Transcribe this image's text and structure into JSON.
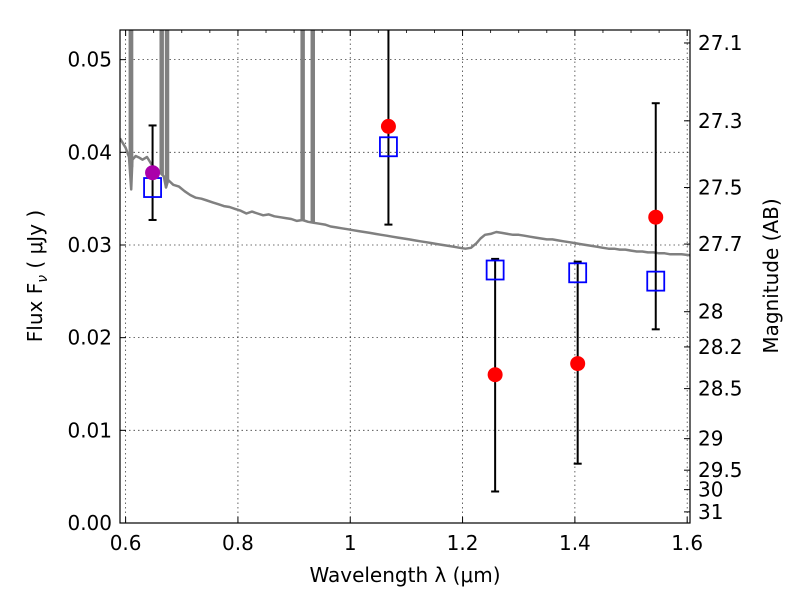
{
  "chart_data": {
    "type": "scatter",
    "xlabel": "Wavelength  λ (μm)",
    "ylabel": "Flux  F",
    "ylabel_sub": "ν",
    "ylabel_unit": " ( μJy )",
    "y2label": "Magnitude (AB)",
    "xlim": [
      0.59,
      1.605
    ],
    "ylim": [
      0.0,
      0.0532
    ],
    "grid": true,
    "x_ticks": [
      0.6,
      0.8,
      1.0,
      1.2,
      1.4,
      1.6
    ],
    "x_tick_labels": [
      "0.6",
      "0.8",
      "1",
      "1.2",
      "1.4",
      "1.6"
    ],
    "y_ticks": [
      0.0,
      0.01,
      0.02,
      0.03,
      0.04,
      0.05
    ],
    "y_tick_labels": [
      "0.00",
      "0.01",
      "0.02",
      "0.03",
      "0.04",
      "0.05"
    ],
    "y2_ticks": [
      {
        "label": "27.1",
        "flux": 0.0518
      },
      {
        "label": "27.3",
        "flux": 0.0434
      },
      {
        "label": "27.5",
        "flux": 0.0362
      },
      {
        "label": "27.7",
        "flux": 0.0301
      },
      {
        "label": "28",
        "flux": 0.0228
      },
      {
        "label": "28.2",
        "flux": 0.019
      },
      {
        "label": "28.5",
        "flux": 0.0145
      },
      {
        "label": "29",
        "flux": 0.0091
      },
      {
        "label": "29.5",
        "flux": 0.0057
      },
      {
        "label": "30",
        "flux": 0.0036
      },
      {
        "label": "31",
        "flux": 0.0012
      }
    ],
    "series": [
      {
        "kind": "model_spectrum",
        "color": "#808080",
        "points": [
          [
            0.59,
            0.0415
          ],
          [
            0.6,
            0.0405
          ],
          [
            0.606,
            0.0395
          ],
          [
            0.61,
            0.036
          ],
          [
            0.612,
            0.0392
          ],
          [
            0.618,
            0.0396
          ],
          [
            0.625,
            0.0394
          ],
          [
            0.63,
            0.0392
          ],
          [
            0.638,
            0.0395
          ],
          [
            0.645,
            0.0388
          ],
          [
            0.652,
            0.0383
          ],
          [
            0.66,
            0.0379
          ],
          [
            0.668,
            0.0374
          ],
          [
            0.672,
            0.0362
          ],
          [
            0.676,
            0.037
          ],
          [
            0.685,
            0.0365
          ],
          [
            0.695,
            0.0363
          ],
          [
            0.705,
            0.0358
          ],
          [
            0.715,
            0.0354
          ],
          [
            0.725,
            0.0351
          ],
          [
            0.735,
            0.035
          ],
          [
            0.745,
            0.0348
          ],
          [
            0.755,
            0.0346
          ],
          [
            0.765,
            0.0344
          ],
          [
            0.775,
            0.0342
          ],
          [
            0.785,
            0.0341
          ],
          [
            0.795,
            0.0339
          ],
          [
            0.805,
            0.0337
          ],
          [
            0.815,
            0.0334
          ],
          [
            0.825,
            0.0336
          ],
          [
            0.835,
            0.0334
          ],
          [
            0.845,
            0.0332
          ],
          [
            0.855,
            0.0333
          ],
          [
            0.865,
            0.0331
          ],
          [
            0.875,
            0.033
          ],
          [
            0.885,
            0.0329
          ],
          [
            0.895,
            0.0328
          ],
          [
            0.905,
            0.0326
          ],
          [
            0.915,
            0.0327
          ],
          [
            0.925,
            0.0325
          ],
          [
            0.935,
            0.0324
          ],
          [
            0.945,
            0.0323
          ],
          [
            0.955,
            0.0322
          ],
          [
            0.965,
            0.032
          ],
          [
            0.975,
            0.0319
          ],
          [
            0.985,
            0.0318
          ],
          [
            0.995,
            0.0317
          ],
          [
            1.005,
            0.0316
          ],
          [
            1.015,
            0.0315
          ],
          [
            1.025,
            0.0314
          ],
          [
            1.035,
            0.0313
          ],
          [
            1.045,
            0.0312
          ],
          [
            1.055,
            0.0311
          ],
          [
            1.065,
            0.031
          ],
          [
            1.075,
            0.0309
          ],
          [
            1.085,
            0.0308
          ],
          [
            1.095,
            0.0307
          ],
          [
            1.105,
            0.0306
          ],
          [
            1.115,
            0.0305
          ],
          [
            1.125,
            0.0304
          ],
          [
            1.135,
            0.0303
          ],
          [
            1.145,
            0.0302
          ],
          [
            1.155,
            0.0301
          ],
          [
            1.165,
            0.03
          ],
          [
            1.175,
            0.0299
          ],
          [
            1.185,
            0.0298
          ],
          [
            1.195,
            0.0297
          ],
          [
            1.205,
            0.0296
          ],
          [
            1.215,
            0.0297
          ],
          [
            1.225,
            0.0302
          ],
          [
            1.232,
            0.0307
          ],
          [
            1.24,
            0.0311
          ],
          [
            1.25,
            0.0312
          ],
          [
            1.26,
            0.0314
          ],
          [
            1.27,
            0.0313
          ],
          [
            1.28,
            0.0312
          ],
          [
            1.29,
            0.0311
          ],
          [
            1.3,
            0.0311
          ],
          [
            1.31,
            0.031
          ],
          [
            1.32,
            0.0309
          ],
          [
            1.33,
            0.0308
          ],
          [
            1.34,
            0.0307
          ],
          [
            1.35,
            0.0306
          ],
          [
            1.36,
            0.0306
          ],
          [
            1.37,
            0.0305
          ],
          [
            1.38,
            0.0304
          ],
          [
            1.39,
            0.0303
          ],
          [
            1.4,
            0.0302
          ],
          [
            1.41,
            0.0301
          ],
          [
            1.42,
            0.03
          ],
          [
            1.43,
            0.0299
          ],
          [
            1.44,
            0.0298
          ],
          [
            1.45,
            0.0297
          ],
          [
            1.46,
            0.0296
          ],
          [
            1.47,
            0.0296
          ],
          [
            1.48,
            0.0295
          ],
          [
            1.49,
            0.0295
          ],
          [
            1.5,
            0.0294
          ],
          [
            1.51,
            0.0293
          ],
          [
            1.52,
            0.0293
          ],
          [
            1.53,
            0.0292
          ],
          [
            1.54,
            0.0292
          ],
          [
            1.55,
            0.0291
          ],
          [
            1.56,
            0.0291
          ],
          [
            1.57,
            0.029
          ],
          [
            1.58,
            0.029
          ],
          [
            1.59,
            0.029
          ],
          [
            1.605,
            0.0289
          ]
        ],
        "emission_lines": [
          {
            "x": 0.6075,
            "y": 0.0532
          },
          {
            "x": 0.6115,
            "y": 0.0532
          },
          {
            "x": 0.6625,
            "y": 0.0532
          },
          {
            "x": 0.666,
            "y": 0.0532
          },
          {
            "x": 0.672,
            "y": 0.0532
          },
          {
            "x": 0.6755,
            "y": 0.0532
          },
          {
            "x": 0.9135,
            "y": 0.0532
          },
          {
            "x": 0.917,
            "y": 0.0532
          },
          {
            "x": 0.9315,
            "y": 0.0532
          },
          {
            "x": 0.935,
            "y": 0.0532
          }
        ]
      },
      {
        "kind": "observed",
        "color": "#ff0000",
        "points": [
          {
            "x": 1.068,
            "y": 0.0428,
            "err_low": 0.0322,
            "err_high": 0.0534
          },
          {
            "x": 1.258,
            "y": 0.016,
            "err_low": 0.0034,
            "err_high": 0.0285
          },
          {
            "x": 1.405,
            "y": 0.0172,
            "err_low": 0.0064,
            "err_high": 0.0282
          },
          {
            "x": 1.544,
            "y": 0.033,
            "err_low": 0.0209,
            "err_high": 0.0453
          }
        ]
      },
      {
        "kind": "observed_optical",
        "color": "#aa00aa",
        "points": [
          {
            "x": 0.648,
            "y": 0.0378,
            "err_low": 0.0327,
            "err_high": 0.0429
          }
        ]
      },
      {
        "kind": "model_photometry",
        "color": "#0000ff",
        "points": [
          {
            "x": 0.648,
            "y": 0.0362
          },
          {
            "x": 1.068,
            "y": 0.0406
          },
          {
            "x": 1.258,
            "y": 0.0273
          },
          {
            "x": 1.405,
            "y": 0.027
          },
          {
            "x": 1.544,
            "y": 0.0261
          }
        ]
      }
    ]
  }
}
